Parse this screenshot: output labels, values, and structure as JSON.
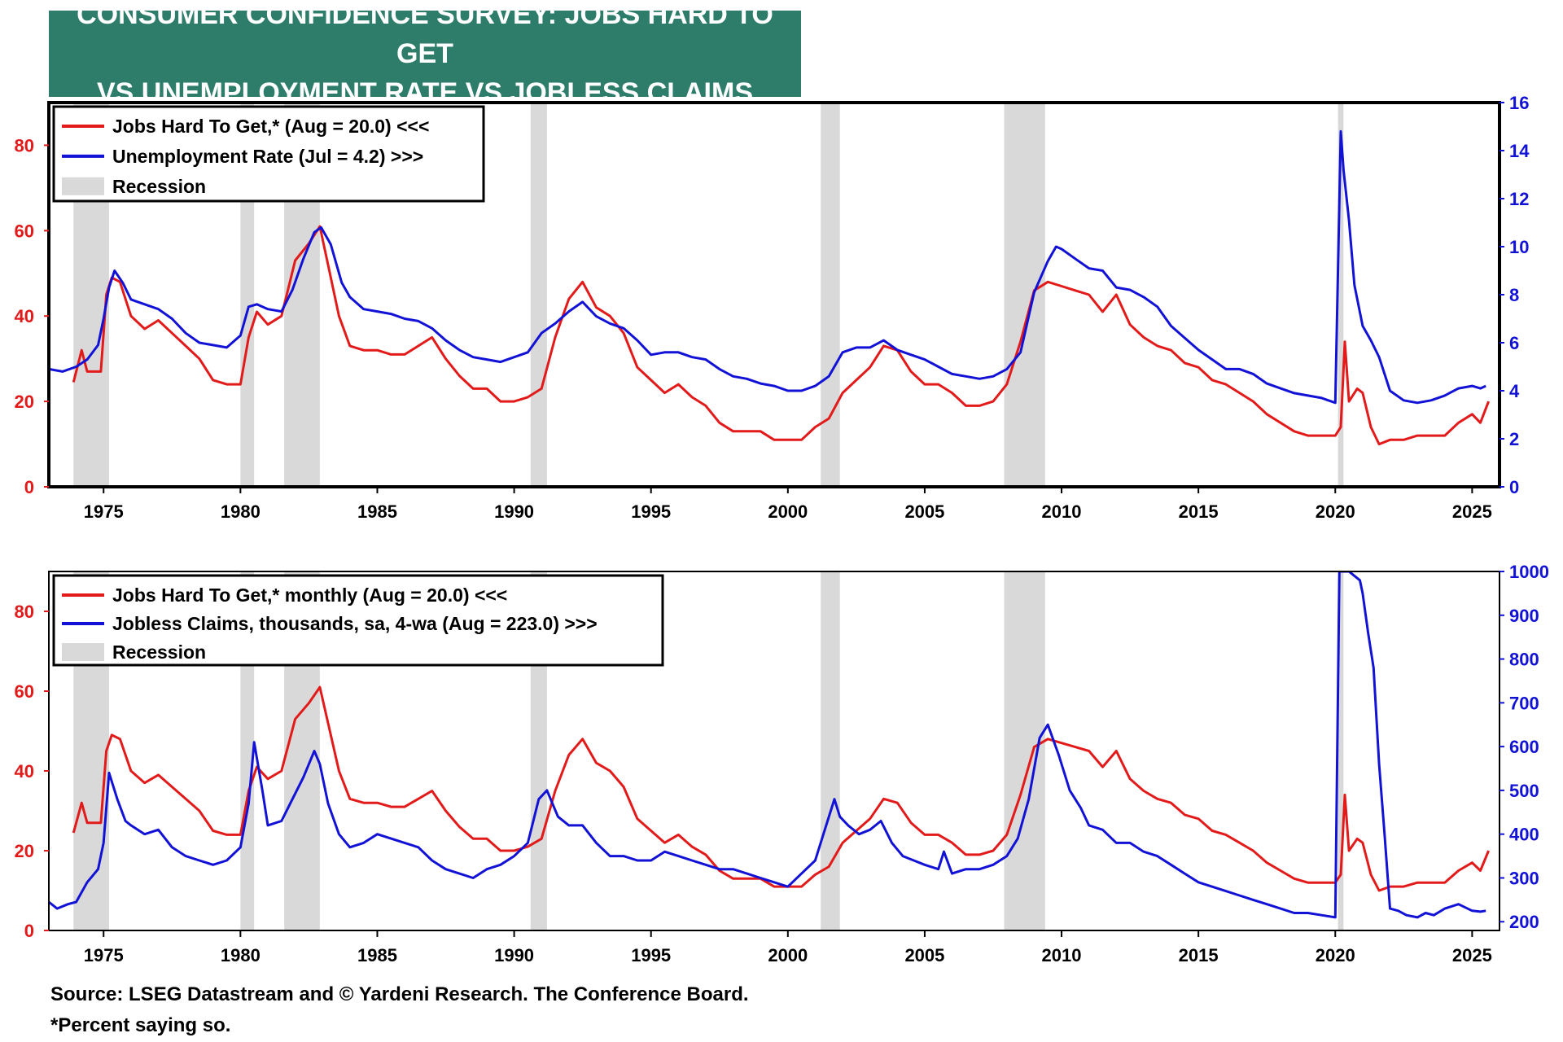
{
  "title": {
    "line1": "CONSUMER CONFIDENCE SURVEY: JOBS HARD TO GET",
    "line2": "VS UNEMPLOYMENT RATE VS JOBLESS CLAIMS"
  },
  "colors": {
    "title_bg": "#2e7d6b",
    "red": "#e21a1a",
    "blue": "#1212d6",
    "recession": "#d9d9d9"
  },
  "footer": {
    "source": "Source: LSEG Datastream and © Yardeni Research. The Conference Board.",
    "note": "*Percent saying so."
  },
  "chart_data": [
    {
      "type": "line",
      "legend": {
        "position": "top-left",
        "red": "Jobs Hard To Get,* (Aug = 20.0) <<<",
        "blue": "Unemployment Rate (Jul = 4.2) >>>",
        "recession": "Recession"
      },
      "xlim": [
        1973.0,
        2026.0
      ],
      "x_ticks": [
        1975,
        1980,
        1985,
        1990,
        1995,
        2000,
        2005,
        2010,
        2015,
        2020,
        2025
      ],
      "x_tick_labels": [
        "1975",
        "1980",
        "1985",
        "1990",
        "1995",
        "2000",
        "2005",
        "2010",
        "2015",
        "2020",
        "2025"
      ],
      "left_axis": {
        "lim": [
          0,
          90
        ],
        "ticks": [
          0,
          20,
          40,
          60,
          80
        ],
        "tick_labels": [
          "0",
          "20",
          "40",
          "60",
          "80"
        ]
      },
      "right_axis": {
        "lim": [
          0,
          16
        ],
        "ticks": [
          0,
          2,
          4,
          6,
          8,
          10,
          12,
          14,
          16
        ],
        "tick_labels": [
          "0",
          "2",
          "4",
          "6",
          "8",
          "10",
          "12",
          "14",
          "16"
        ]
      },
      "recessions": [
        [
          1973.9,
          1975.2
        ],
        [
          1980.0,
          1980.5
        ],
        [
          1981.6,
          1982.9
        ],
        [
          1990.6,
          1991.2
        ],
        [
          2001.2,
          2001.9
        ],
        [
          2007.9,
          2009.4
        ],
        [
          2020.1,
          2020.3
        ]
      ],
      "series": [
        {
          "name": "Jobs Hard To Get",
          "axis": "left",
          "color": "red",
          "x": [
            1973.9,
            1974.2,
            1974.4,
            1974.6,
            1974.9,
            1975.1,
            1975.3,
            1975.6,
            1976.0,
            1976.5,
            1977.0,
            1977.5,
            1978.0,
            1978.5,
            1979.0,
            1979.5,
            1980.0,
            1980.3,
            1980.6,
            1981.0,
            1981.5,
            1982.0,
            1982.5,
            1982.9,
            1983.2,
            1983.6,
            1984.0,
            1984.5,
            1985.0,
            1985.5,
            1986.0,
            1986.5,
            1987.0,
            1987.5,
            1988.0,
            1988.5,
            1989.0,
            1989.5,
            1990.0,
            1990.5,
            1991.0,
            1991.5,
            1992.0,
            1992.5,
            1993.0,
            1993.5,
            1994.0,
            1994.5,
            1995.0,
            1995.5,
            1996.0,
            1996.5,
            1997.0,
            1997.5,
            1998.0,
            1998.5,
            1999.0,
            1999.5,
            2000.0,
            2000.5,
            2001.0,
            2001.5,
            2002.0,
            2002.5,
            2003.0,
            2003.5,
            2004.0,
            2004.5,
            2005.0,
            2005.5,
            2006.0,
            2006.5,
            2007.0,
            2007.5,
            2008.0,
            2008.5,
            2009.0,
            2009.5,
            2010.0,
            2010.5,
            2011.0,
            2011.5,
            2012.0,
            2012.5,
            2013.0,
            2013.5,
            2014.0,
            2014.5,
            2015.0,
            2015.5,
            2016.0,
            2016.5,
            2017.0,
            2017.5,
            2018.0,
            2018.5,
            2019.0,
            2019.5,
            2020.0,
            2020.2,
            2020.35,
            2020.5,
            2020.8,
            2021.0,
            2021.3,
            2021.6,
            2022.0,
            2022.5,
            2023.0,
            2023.5,
            2024.0,
            2024.5,
            2025.0,
            2025.3,
            2025.6
          ],
          "values": [
            24.5,
            32,
            27,
            27,
            27,
            45,
            49,
            48,
            40,
            37,
            39,
            36,
            33,
            30,
            25,
            24,
            24,
            35,
            41,
            38,
            40,
            53,
            57,
            61,
            52,
            40,
            33,
            32,
            32,
            31,
            31,
            33,
            35,
            30,
            26,
            23,
            23,
            20,
            20,
            21,
            23,
            35,
            44,
            48,
            42,
            40,
            36,
            28,
            25,
            22,
            24,
            21,
            19,
            15,
            13,
            13,
            13,
            11,
            11,
            11,
            14,
            16,
            22,
            25,
            28,
            33,
            32,
            27,
            24,
            24,
            22,
            19,
            19,
            20,
            24,
            34,
            46,
            48,
            47,
            46,
            45,
            41,
            45,
            38,
            35,
            33,
            32,
            29,
            28,
            25,
            24,
            22,
            20,
            17,
            15,
            13,
            12,
            12,
            12,
            14,
            34,
            20,
            23,
            22,
            14,
            10,
            11,
            11,
            12,
            12,
            12,
            15,
            17,
            15,
            20
          ]
        },
        {
          "name": "Unemployment Rate",
          "axis": "right",
          "color": "blue",
          "x": [
            1973.0,
            1973.5,
            1974.0,
            1974.4,
            1974.8,
            1975.0,
            1975.2,
            1975.4,
            1975.7,
            1976.0,
            1976.5,
            1977.0,
            1977.5,
            1978.0,
            1978.5,
            1979.0,
            1979.5,
            1980.0,
            1980.3,
            1980.6,
            1981.0,
            1981.5,
            1981.9,
            1982.3,
            1982.7,
            1982.95,
            1983.3,
            1983.7,
            1984.0,
            1984.5,
            1985.0,
            1985.5,
            1986.0,
            1986.5,
            1987.0,
            1987.5,
            1988.0,
            1988.5,
            1989.0,
            1989.5,
            1990.0,
            1990.5,
            1991.0,
            1991.5,
            1992.0,
            1992.5,
            1993.0,
            1993.5,
            1994.0,
            1994.5,
            1995.0,
            1995.5,
            1996.0,
            1996.5,
            1997.0,
            1997.5,
            1998.0,
            1998.5,
            1999.0,
            1999.5,
            2000.0,
            2000.5,
            2001.0,
            2001.5,
            2002.0,
            2002.5,
            2003.0,
            2003.5,
            2004.0,
            2004.5,
            2005.0,
            2005.5,
            2006.0,
            2006.5,
            2007.0,
            2007.5,
            2008.0,
            2008.5,
            2009.0,
            2009.5,
            2009.8,
            2010.0,
            2010.5,
            2011.0,
            2011.5,
            2012.0,
            2012.5,
            2013.0,
            2013.5,
            2014.0,
            2014.5,
            2015.0,
            2015.5,
            2016.0,
            2016.5,
            2017.0,
            2017.5,
            2018.0,
            2018.5,
            2019.0,
            2019.5,
            2020.0,
            2020.2,
            2020.3,
            2020.5,
            2020.7,
            2021.0,
            2021.3,
            2021.6,
            2022.0,
            2022.5,
            2023.0,
            2023.5,
            2024.0,
            2024.5,
            2025.0,
            2025.3,
            2025.5
          ],
          "values": [
            4.9,
            4.8,
            5.0,
            5.3,
            5.9,
            7.0,
            8.3,
            9.0,
            8.5,
            7.8,
            7.6,
            7.4,
            7.0,
            6.4,
            6.0,
            5.9,
            5.8,
            6.3,
            7.5,
            7.6,
            7.4,
            7.3,
            8.2,
            9.5,
            10.6,
            10.8,
            10.1,
            8.5,
            7.9,
            7.4,
            7.3,
            7.2,
            7.0,
            6.9,
            6.6,
            6.1,
            5.7,
            5.4,
            5.3,
            5.2,
            5.4,
            5.6,
            6.4,
            6.8,
            7.3,
            7.7,
            7.1,
            6.8,
            6.6,
            6.1,
            5.5,
            5.6,
            5.6,
            5.4,
            5.3,
            4.9,
            4.6,
            4.5,
            4.3,
            4.2,
            4.0,
            4.0,
            4.2,
            4.6,
            5.6,
            5.8,
            5.8,
            6.1,
            5.7,
            5.5,
            5.3,
            5.0,
            4.7,
            4.6,
            4.5,
            4.6,
            4.9,
            5.6,
            8.1,
            9.4,
            10.0,
            9.9,
            9.5,
            9.1,
            9.0,
            8.3,
            8.2,
            7.9,
            7.5,
            6.7,
            6.2,
            5.7,
            5.3,
            4.9,
            4.9,
            4.7,
            4.3,
            4.1,
            3.9,
            3.8,
            3.7,
            3.5,
            14.8,
            13.2,
            11.1,
            8.4,
            6.7,
            6.1,
            5.4,
            4.0,
            3.6,
            3.5,
            3.6,
            3.8,
            4.1,
            4.2,
            4.1,
            4.2
          ]
        }
      ]
    },
    {
      "type": "line",
      "legend": {
        "position": "top-left",
        "red": "Jobs Hard To Get,* monthly (Aug = 20.0) <<<",
        "blue": "Jobless Claims, thousands, sa, 4-wa  (Aug = 223.0) >>>",
        "recession": "Recession"
      },
      "xlim": [
        1973.0,
        2026.0
      ],
      "x_ticks": [
        1975,
        1980,
        1985,
        1990,
        1995,
        2000,
        2005,
        2010,
        2015,
        2020,
        2025
      ],
      "x_tick_labels": [
        "1975",
        "1980",
        "1985",
        "1990",
        "1995",
        "2000",
        "2005",
        "2010",
        "2015",
        "2020",
        "2025"
      ],
      "left_axis": {
        "lim": [
          0,
          90
        ],
        "ticks": [
          0,
          20,
          40,
          60,
          80
        ],
        "tick_labels": [
          "0",
          "20",
          "40",
          "60",
          "80"
        ]
      },
      "right_axis": {
        "lim": [
          180,
          1000
        ],
        "ticks": [
          200,
          300,
          400,
          500,
          600,
          700,
          800,
          900,
          1000
        ],
        "tick_labels": [
          "200",
          "300",
          "400",
          "500",
          "600",
          "700",
          "800",
          "900",
          "1000"
        ]
      },
      "recessions": [
        [
          1973.9,
          1975.2
        ],
        [
          1980.0,
          1980.5
        ],
        [
          1981.6,
          1982.9
        ],
        [
          1990.6,
          1991.2
        ],
        [
          2001.2,
          2001.9
        ],
        [
          2007.9,
          2009.4
        ],
        [
          2020.1,
          2020.3
        ]
      ],
      "series": [
        {
          "name": "Jobs Hard To Get",
          "axis": "left",
          "color": "red",
          "ref_series": "Jobs Hard To Get (chart 1)"
        },
        {
          "name": "Jobless Claims",
          "axis": "right",
          "color": "blue",
          "x": [
            1973.0,
            1973.3,
            1973.7,
            1974.0,
            1974.4,
            1974.8,
            1975.0,
            1975.2,
            1975.5,
            1975.8,
            1976.0,
            1976.5,
            1977.0,
            1977.5,
            1978.0,
            1978.5,
            1979.0,
            1979.5,
            1980.0,
            1980.3,
            1980.5,
            1980.8,
            1981.0,
            1981.5,
            1981.9,
            1982.3,
            1982.7,
            1982.9,
            1983.2,
            1983.6,
            1984.0,
            1984.5,
            1985.0,
            1985.5,
            1986.0,
            1986.5,
            1987.0,
            1987.5,
            1988.0,
            1988.5,
            1989.0,
            1989.5,
            1990.0,
            1990.5,
            1990.9,
            1991.2,
            1991.6,
            1992.0,
            1992.5,
            1993.0,
            1993.5,
            1994.0,
            1994.5,
            1995.0,
            1995.5,
            1996.0,
            1996.5,
            1997.0,
            1997.5,
            1998.0,
            1998.5,
            1999.0,
            1999.5,
            2000.0,
            2000.5,
            2001.0,
            2001.3,
            2001.7,
            2001.9,
            2002.2,
            2002.6,
            2003.0,
            2003.4,
            2003.8,
            2004.2,
            2004.6,
            2005.0,
            2005.5,
            2005.7,
            2006.0,
            2006.5,
            2007.0,
            2007.5,
            2008.0,
            2008.4,
            2008.8,
            2009.2,
            2009.5,
            2009.9,
            2010.3,
            2010.7,
            2011.0,
            2011.5,
            2012.0,
            2012.5,
            2013.0,
            2013.5,
            2014.0,
            2014.5,
            2015.0,
            2015.5,
            2016.0,
            2016.5,
            2017.0,
            2017.5,
            2018.0,
            2018.5,
            2019.0,
            2019.5,
            2020.0,
            2020.15,
            2020.2,
            2020.35,
            2020.5,
            2020.7,
            2020.9,
            2021.0,
            2021.2,
            2021.4,
            2021.6,
            2021.8,
            2022.0,
            2022.3,
            2022.6,
            2023.0,
            2023.3,
            2023.6,
            2024.0,
            2024.5,
            2025.0,
            2025.3,
            2025.5
          ],
          "values": [
            245,
            230,
            240,
            245,
            290,
            320,
            380,
            540,
            480,
            430,
            420,
            400,
            410,
            370,
            350,
            340,
            330,
            340,
            370,
            470,
            610,
            500,
            420,
            430,
            480,
            530,
            590,
            560,
            470,
            400,
            370,
            380,
            400,
            390,
            380,
            370,
            340,
            320,
            310,
            300,
            320,
            330,
            350,
            380,
            480,
            500,
            440,
            420,
            420,
            380,
            350,
            350,
            340,
            340,
            360,
            350,
            340,
            330,
            320,
            320,
            310,
            300,
            290,
            280,
            310,
            340,
            400,
            480,
            440,
            420,
            400,
            410,
            430,
            380,
            350,
            340,
            330,
            320,
            360,
            310,
            320,
            320,
            330,
            350,
            390,
            480,
            620,
            650,
            580,
            500,
            460,
            420,
            410,
            380,
            380,
            360,
            350,
            330,
            310,
            290,
            280,
            270,
            260,
            250,
            240,
            230,
            220,
            220,
            215,
            210,
            1000,
            1000,
            1000,
            1000,
            990,
            980,
            950,
            860,
            780,
            560,
            400,
            230,
            225,
            215,
            210,
            220,
            215,
            230,
            240,
            225,
            223,
            225
          ]
        }
      ]
    }
  ]
}
